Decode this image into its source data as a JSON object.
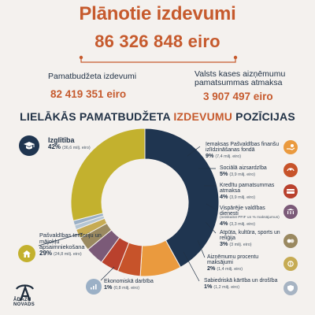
{
  "header": {
    "title": "Plānotie izdevumi",
    "total": "86 326 848 eiro"
  },
  "subsections": [
    {
      "label": "Pamatbudžeta izdevumi",
      "value": "82 419 351 eiro"
    },
    {
      "label": "Valsts kases aizņēmumu pamatsummas atmaksa",
      "value": "3 907 497 eiro"
    }
  ],
  "section_title": {
    "before": "LIELĀKĀS PAMATBUDŽETA ",
    "accent": "IZDEVUMU",
    "after": " POZĪCIJAS"
  },
  "chart_data": {
    "type": "pie",
    "title": "",
    "categories": [
      "Izglītība",
      "Iemaksas Pašvaldības finanšu izlīdzināšanas fondā",
      "Sociālā aizsardzība",
      "Kredītu pamatsummas atmaksa",
      "Vispārējie valdības dienesti",
      "Atpūta, kultūra, sports un reliģija",
      "Aizņēmumu procentu maksājumi",
      "Sabiedriskā kārtība un drošība",
      "Ekonomiskā darbība",
      "Pašvaldības teritoriju un mājokļu apsaimniekošana"
    ],
    "values": [
      42,
      9,
      5,
      4,
      4,
      3,
      2,
      1,
      1,
      29
    ],
    "amounts_text": [
      "(36,6 milj. eiro)",
      "(7,4 milj. eiro)",
      "(3,9 milj. eiro)",
      "(3,9 milj. eiro)",
      "(3,3 milj. eiro)",
      "(3 milj. eiro)",
      "(1,4 milj. eiro)",
      "(1,2 milj. eiro)",
      "(0,8 milj. eiro)",
      "(24,8 milj. eiro)"
    ],
    "colors": [
      "#1f3550",
      "#ea9a3e",
      "#c7532a",
      "#b9412d",
      "#7b5a78",
      "#9a8960",
      "#c6ab53",
      "#b5c6d4",
      "#9bb0c6",
      "#c3b12e"
    ],
    "labels": {
      "education_pct": "42%",
      "fund_pct": "9%",
      "social_pct": "5%",
      "credit_pct": "4%",
      "government_pct": "4%",
      "culture_pct": "3%",
      "interest_pct": "2%",
      "safety_pct": "1%",
      "economy_pct": "1%",
      "territory_pct": "29%"
    },
    "notes": {
      "government_small": "(neiskaitot PFIF un % maksājumus)"
    },
    "legend": "none",
    "grid": false
  },
  "logo": {
    "line1": "ĀDAŽU",
    "line2": "NOVADS"
  }
}
